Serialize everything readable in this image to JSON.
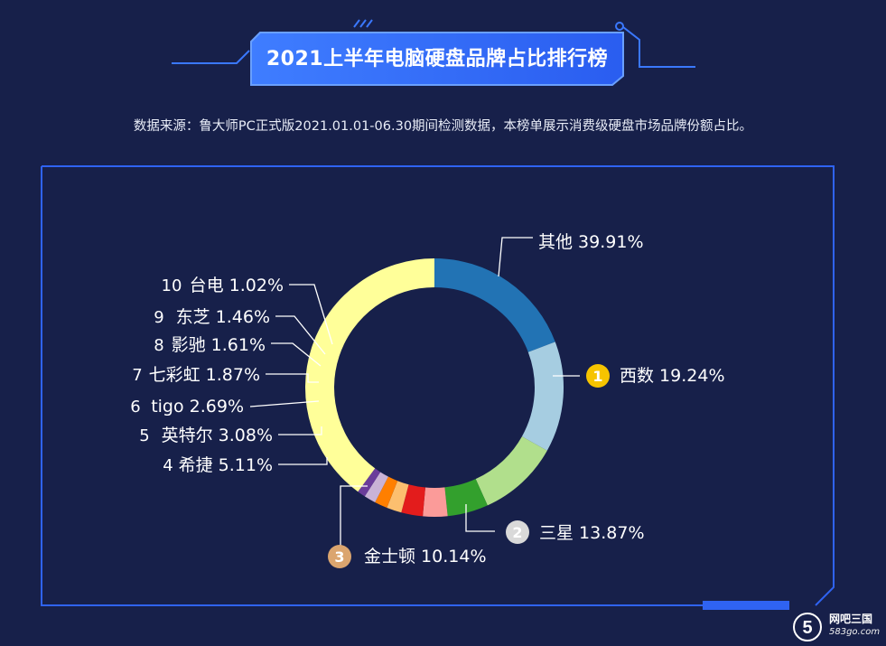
{
  "title": "2021上半年电脑硬盘品牌占比排行榜",
  "subtitle": "数据来源：鲁大师PC正式版2021.01.01-06.30期间检测数据，本榜单展示消费级硬盘市场品牌份额占比。",
  "chart_data": {
    "type": "pie",
    "variant": "donut",
    "unit": "%",
    "slices": [
      {
        "rank": "1",
        "label": "西数",
        "value": 19.24,
        "value_text": "19.24%",
        "color": "#2273b4"
      },
      {
        "rank": "2",
        "label": "三星",
        "value": 13.87,
        "value_text": "13.87%",
        "color": "#a6cde1"
      },
      {
        "rank": "3",
        "label": "金士顿",
        "value": 10.14,
        "value_text": "10.14%",
        "color": "#b1df8c"
      },
      {
        "rank": "4",
        "label": "希捷",
        "value": 5.11,
        "value_text": "5.11%",
        "color": "#33a02d"
      },
      {
        "rank": "5",
        "label": "英特尔",
        "value": 3.08,
        "value_text": "3.08%",
        "color": "#fb9b99"
      },
      {
        "rank": "6",
        "label": "tigo",
        "value": 2.69,
        "value_text": "2.69%",
        "color": "#e31c1c"
      },
      {
        "rank": "7",
        "label": "七彩虹",
        "value": 1.87,
        "value_text": "1.87%",
        "color": "#fcbf6f"
      },
      {
        "rank": "8",
        "label": "影驰",
        "value": 1.61,
        "value_text": "1.61%",
        "color": "#ff7f00"
      },
      {
        "rank": "9",
        "label": "东芝",
        "value": 1.46,
        "value_text": "1.46%",
        "color": "#c9b3d6"
      },
      {
        "rank": "10",
        "label": "台电",
        "value": 1.02,
        "value_text": "1.02%",
        "color": "#6a3d9a"
      },
      {
        "rank": "",
        "label": "其他",
        "value": 39.91,
        "value_text": "39.91%",
        "color": "#ffff99"
      }
    ],
    "medal_colors": {
      "1": "#f6c400",
      "2": "#d9d9d9",
      "3": "#dba56f"
    }
  },
  "logo": {
    "name": "网吧三国",
    "site": "583go.com"
  }
}
